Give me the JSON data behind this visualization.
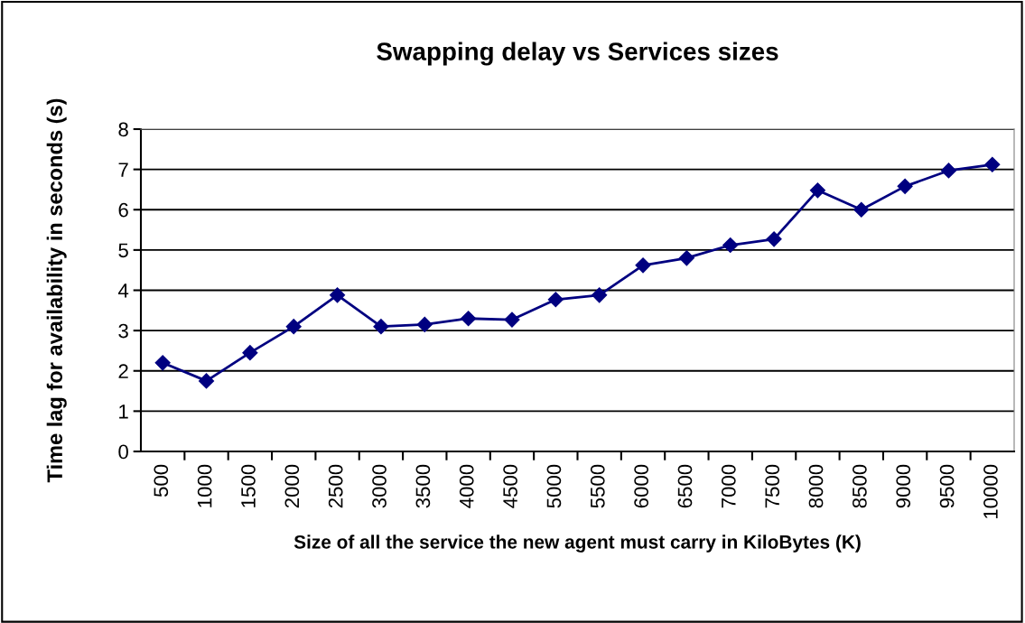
{
  "chart_data": {
    "type": "line",
    "title": "Swapping delay vs Services sizes",
    "xlabel": "Size of all the service the new agent must carry in KiloBytes (K)",
    "ylabel": "Time lag for availability in seconds (s)",
    "categories": [
      "500",
      "1000",
      "1500",
      "2000",
      "2500",
      "3000",
      "3500",
      "4000",
      "4500",
      "5000",
      "5500",
      "6000",
      "6500",
      "7000",
      "7500",
      "8000",
      "8500",
      "9000",
      "9500",
      "10000"
    ],
    "series": [
      {
        "color": "#000080",
        "values": [
          2.2,
          1.75,
          2.45,
          3.1,
          3.88,
          3.1,
          3.15,
          3.3,
          3.27,
          3.77,
          3.88,
          4.62,
          4.8,
          5.12,
          5.27,
          6.48,
          6.0,
          6.58,
          6.97,
          7.12
        ]
      }
    ],
    "ylim": [
      0,
      8
    ],
    "yticks": [
      0,
      1,
      2,
      3,
      4,
      5,
      6,
      7,
      8
    ],
    "grid": "y",
    "marker": "diamond",
    "line_style": "solid",
    "legend": false
  }
}
